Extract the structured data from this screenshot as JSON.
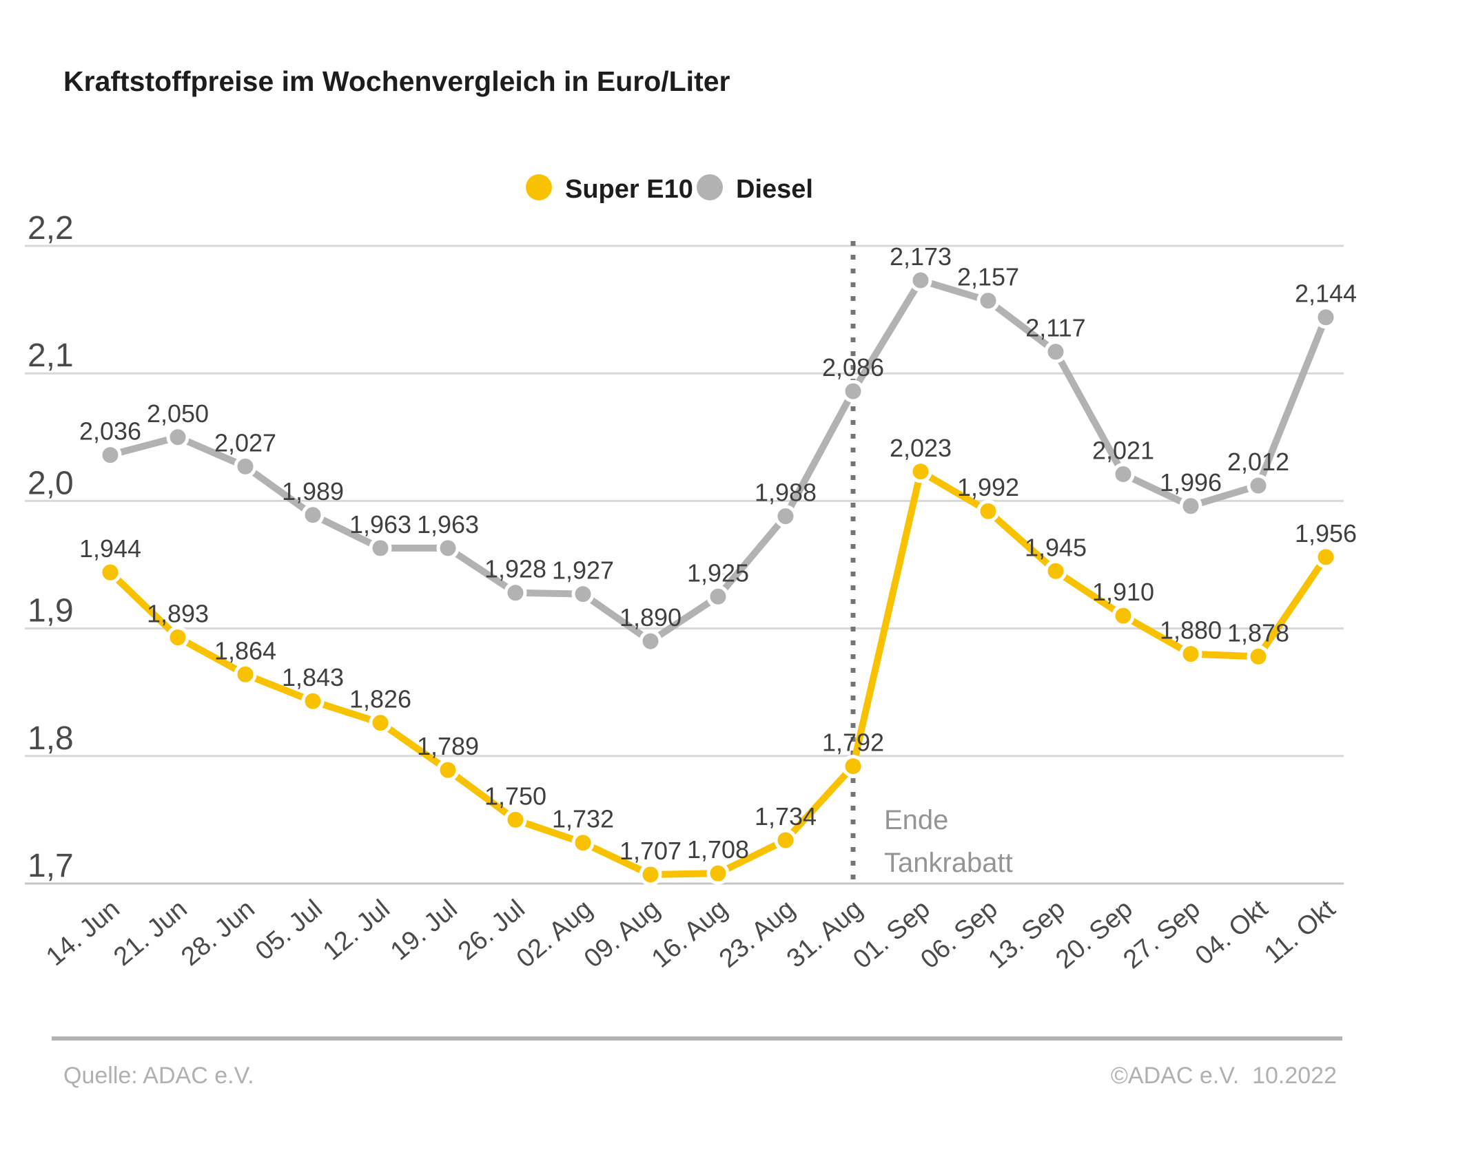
{
  "title": "Kraftstoffpreise im Wochenvergleich in Euro/Liter",
  "legend": {
    "super_e10": {
      "label": "Super E10",
      "color": "#F8C200"
    },
    "diesel": {
      "label": "Diesel",
      "color": "#B2B2B2"
    }
  },
  "annotation": {
    "line1": "Ende",
    "line2": "Tankrabatt"
  },
  "footer": {
    "source": "Quelle: ADAC e.V.",
    "copyright": "©ADAC e.V.  10.2022"
  },
  "colors": {
    "super_e10": "#F8C200",
    "diesel": "#B2B2B2",
    "grid": "#d8d8d8",
    "value_label": "#3f3f3f",
    "axis_label": "#4a4a4a",
    "annotation": "#949494",
    "footer": "#b0b0b0"
  },
  "chart_data": {
    "type": "line",
    "title": "Kraftstoffpreise im Wochenvergleich in Euro/Liter",
    "unit": "Euro/Liter",
    "categories": [
      "14. Jun",
      "21. Jun",
      "28. Jun",
      "05. Jul",
      "12. Jul",
      "19. Jul",
      "26. Jul",
      "02. Aug",
      "09. Aug",
      "16. Aug",
      "23. Aug",
      "31. Aug",
      "01. Sep",
      "06. Sep",
      "13. Sep",
      "20. Sep",
      "27. Sep",
      "04. Okt",
      "11. Okt"
    ],
    "series": [
      {
        "name": "Super E10",
        "color": "#F8C200",
        "values": [
          1.944,
          1.893,
          1.864,
          1.843,
          1.826,
          1.789,
          1.75,
          1.732,
          1.707,
          1.708,
          1.734,
          1.792,
          2.023,
          1.992,
          1.945,
          1.91,
          1.88,
          1.878,
          1.956
        ],
        "labels": [
          "1,944",
          "1,893",
          "1,864",
          "1,843",
          "1,826",
          "1,789",
          "1,750",
          "1,732",
          "1,707",
          "1,708",
          "1,734",
          "1,792",
          "2,023",
          "1,992",
          "1,945",
          "1,910",
          "1,880",
          "1,878",
          "1,956"
        ]
      },
      {
        "name": "Diesel",
        "color": "#B2B2B2",
        "values": [
          2.036,
          2.05,
          2.027,
          1.989,
          1.963,
          1.963,
          1.928,
          1.927,
          1.89,
          1.925,
          1.988,
          2.086,
          2.173,
          2.157,
          2.117,
          2.021,
          1.996,
          2.012,
          2.144
        ],
        "labels": [
          "2,036",
          "2,050",
          "2,027",
          "1,989",
          "1,963",
          "1,963",
          "1,928",
          "1,927",
          "1,890",
          "1,925",
          "1,988",
          "2,086",
          "2,173",
          "2,157",
          "2,117",
          "2,021",
          "1,996",
          "2,012",
          "2,144"
        ]
      }
    ],
    "ylim": [
      1.7,
      2.2
    ],
    "yticks": [
      2.2,
      2.1,
      2.0,
      1.9,
      1.8,
      1.7
    ],
    "ytick_labels": [
      "2,2",
      "2,1",
      "2,0",
      "1,9",
      "1,8",
      "1,7"
    ],
    "grid": true,
    "legend_position": "top-center",
    "vline": {
      "at_category": "31. Aug",
      "index": 11,
      "label": "Ende Tankrabatt"
    }
  }
}
